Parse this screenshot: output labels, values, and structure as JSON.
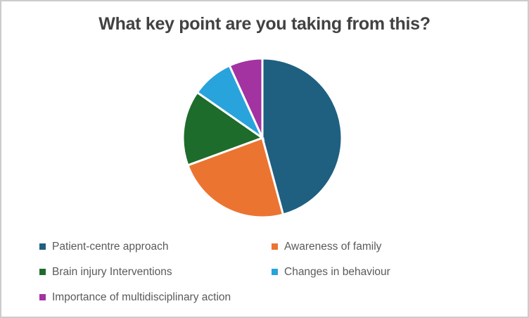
{
  "panel": {
    "background": "#ffffff",
    "border_color": "#cccccc"
  },
  "styles": {
    "title_color": "#424242",
    "legend_text_color": "#5a5a5a",
    "slice_border_color": "#ffffff"
  },
  "chart_data": {
    "type": "pie",
    "title": "What key point are you taking from this?",
    "categories": [
      "Patient-centre approach",
      "Awareness of family",
      "Brain injury Interventions",
      "Changes in behaviour",
      "Importance of multidisciplinary action"
    ],
    "values": [
      45.8,
      23.6,
      15.3,
      8.5,
      6.8
    ],
    "units": "percent (estimated from slice angles)",
    "colors": [
      "#1F6080",
      "#EC7431",
      "#1E6C2B",
      "#29A3DC",
      "#A233A1"
    ],
    "start_angle_deg": 0,
    "direction": "clockwise",
    "legend_position": "bottom",
    "legend_columns": 2
  }
}
